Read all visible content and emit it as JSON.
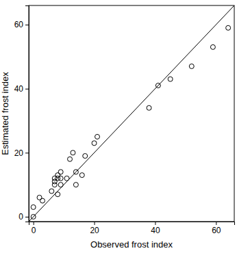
{
  "chart_data": {
    "type": "scatter",
    "x_label": "Observed frost index",
    "y_label": "Estimated frost index",
    "x": [
      0,
      0,
      2,
      3,
      6,
      7,
      7,
      7,
      8,
      8,
      8,
      9,
      9,
      9,
      11,
      12,
      13,
      14,
      14,
      16,
      17,
      20,
      21,
      38,
      41,
      45,
      52,
      59,
      64
    ],
    "values": [
      0,
      3,
      6,
      5,
      8,
      10,
      11,
      12,
      7,
      13,
      12,
      12,
      14,
      10,
      12,
      18,
      20,
      10,
      14,
      13,
      19,
      23,
      25,
      34,
      41,
      43,
      47,
      53,
      59
    ],
    "color": "#000000",
    "marker": "open-circle",
    "xlim": [
      -1.5,
      66
    ],
    "ylim": [
      -1.5,
      66
    ],
    "xticks": [
      0,
      20,
      40,
      60
    ],
    "yticks": [
      0,
      20,
      40,
      60
    ],
    "grid": false
  }
}
